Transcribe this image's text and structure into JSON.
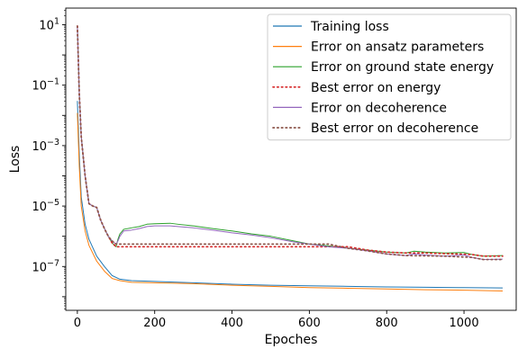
{
  "chart_data": {
    "type": "line",
    "xlabel": "Epoches",
    "ylabel": "Loss",
    "xlim": [
      -30,
      1135
    ],
    "ylim_log10": [
      -8.45,
      1.55
    ],
    "y_scale": "log",
    "grid": false,
    "legend_position": "top-right",
    "x_ticks": [
      0,
      200,
      400,
      600,
      800,
      1000
    ],
    "x_tick_labels": [
      "0",
      "200",
      "400",
      "600",
      "800",
      "1000"
    ],
    "y_ticks_log10": [
      1,
      -1,
      -3,
      -5,
      -7
    ],
    "y_tick_labels": [
      {
        "base": "10",
        "exp": "1"
      },
      {
        "base": "10",
        "exp": "−1"
      },
      {
        "base": "10",
        "exp": "−3"
      },
      {
        "base": "10",
        "exp": "−5"
      },
      {
        "base": "10",
        "exp": "−7"
      }
    ],
    "series": [
      {
        "name": "Training loss",
        "color": "#1f77b4",
        "style": "solid",
        "points": [
          [
            0,
            0.03
          ],
          [
            5,
            0.0005
          ],
          [
            10,
            2e-05
          ],
          [
            20,
            2.5e-06
          ],
          [
            30,
            8e-07
          ],
          [
            50,
            2.2e-07
          ],
          [
            70,
            1e-07
          ],
          [
            90,
            5e-08
          ],
          [
            110,
            3.8e-08
          ],
          [
            140,
            3.4e-08
          ],
          [
            200,
            3.2e-08
          ],
          [
            300,
            2.9e-08
          ],
          [
            400,
            2.6e-08
          ],
          [
            500,
            2.4e-08
          ],
          [
            600,
            2.3e-08
          ],
          [
            700,
            2.2e-08
          ],
          [
            800,
            2.1e-08
          ],
          [
            900,
            2.05e-08
          ],
          [
            1000,
            2e-08
          ],
          [
            1100,
            1.95e-08
          ]
        ]
      },
      {
        "name": "Error on ansatz parameters",
        "color": "#ff7f0e",
        "style": "solid",
        "points": [
          [
            0,
            0.012
          ],
          [
            5,
            0.0002
          ],
          [
            10,
            1e-05
          ],
          [
            20,
            1.5e-06
          ],
          [
            30,
            5e-07
          ],
          [
            50,
            1.5e-07
          ],
          [
            70,
            7e-08
          ],
          [
            90,
            4e-08
          ],
          [
            110,
            3.4e-08
          ],
          [
            140,
            3e-08
          ],
          [
            200,
            2.9e-08
          ],
          [
            300,
            2.7e-08
          ],
          [
            400,
            2.4e-08
          ],
          [
            500,
            2.2e-08
          ],
          [
            600,
            2e-08
          ],
          [
            700,
            1.9e-08
          ],
          [
            800,
            1.8e-08
          ],
          [
            900,
            1.7e-08
          ],
          [
            1000,
            1.65e-08
          ],
          [
            1100,
            1.55e-08
          ]
        ]
      },
      {
        "name": "Error on ground state energy",
        "color": "#2ca02c",
        "style": "solid",
        "points": [
          [
            0,
            9
          ],
          [
            5,
            0.05
          ],
          [
            10,
            0.002
          ],
          [
            20,
            0.0001
          ],
          [
            30,
            1.2e-05
          ],
          [
            40,
            1e-05
          ],
          [
            50,
            9e-06
          ],
          [
            60,
            3.5e-06
          ],
          [
            70,
            1.8e-06
          ],
          [
            80,
            1e-06
          ],
          [
            90,
            6e-07
          ],
          [
            100,
            4.5e-07
          ],
          [
            105,
            8e-07
          ],
          [
            110,
            1.2e-06
          ],
          [
            120,
            1.7e-06
          ],
          [
            140,
            1.9e-06
          ],
          [
            160,
            2.1e-06
          ],
          [
            180,
            2.5e-06
          ],
          [
            200,
            2.6e-06
          ],
          [
            240,
            2.7e-06
          ],
          [
            260,
            2.5e-06
          ],
          [
            300,
            2.2e-06
          ],
          [
            350,
            1.8e-06
          ],
          [
            400,
            1.5e-06
          ],
          [
            450,
            1.2e-06
          ],
          [
            500,
            1e-06
          ],
          [
            560,
            7e-07
          ],
          [
            600,
            5.5e-07
          ],
          [
            650,
            4.8e-07
          ],
          [
            700,
            4e-07
          ],
          [
            750,
            3.5e-07
          ],
          [
            800,
            3e-07
          ],
          [
            850,
            2.8e-07
          ],
          [
            870,
            3.2e-07
          ],
          [
            900,
            3e-07
          ],
          [
            950,
            2.8e-07
          ],
          [
            1000,
            2.9e-07
          ],
          [
            1020,
            2.5e-07
          ],
          [
            1050,
            2.2e-07
          ],
          [
            1100,
            2.3e-07
          ]
        ]
      },
      {
        "name": "Best error on energy",
        "color": "#d62728",
        "style": "dotted",
        "points": [
          [
            0,
            9
          ],
          [
            5,
            0.05
          ],
          [
            10,
            0.002
          ],
          [
            20,
            0.0001
          ],
          [
            30,
            1.2e-05
          ],
          [
            40,
            1e-05
          ],
          [
            50,
            9e-06
          ],
          [
            60,
            3.5e-06
          ],
          [
            70,
            1.8e-06
          ],
          [
            80,
            1e-06
          ],
          [
            90,
            6e-07
          ],
          [
            100,
            4.5e-07
          ],
          [
            700,
            4.5e-07
          ],
          [
            750,
            3.5e-07
          ],
          [
            800,
            3e-07
          ],
          [
            850,
            2.8e-07
          ],
          [
            900,
            2.8e-07
          ],
          [
            1020,
            2.5e-07
          ],
          [
            1050,
            2.2e-07
          ],
          [
            1100,
            2.2e-07
          ]
        ]
      },
      {
        "name": "Error on decoherence",
        "color": "#9467bd",
        "style": "solid",
        "points": [
          [
            0,
            9
          ],
          [
            5,
            0.05
          ],
          [
            10,
            0.002
          ],
          [
            20,
            0.0001
          ],
          [
            30,
            1.2e-05
          ],
          [
            40,
            1e-05
          ],
          [
            50,
            9e-06
          ],
          [
            60,
            3.5e-06
          ],
          [
            70,
            1.8e-06
          ],
          [
            80,
            1e-06
          ],
          [
            90,
            7e-07
          ],
          [
            100,
            5.5e-07
          ],
          [
            105,
            7e-07
          ],
          [
            110,
            1e-06
          ],
          [
            120,
            1.5e-06
          ],
          [
            140,
            1.6e-06
          ],
          [
            160,
            1.8e-06
          ],
          [
            180,
            2.1e-06
          ],
          [
            200,
            2.2e-06
          ],
          [
            240,
            2.2e-06
          ],
          [
            260,
            2.1e-06
          ],
          [
            300,
            1.9e-06
          ],
          [
            350,
            1.6e-06
          ],
          [
            400,
            1.3e-06
          ],
          [
            450,
            1.1e-06
          ],
          [
            500,
            9e-07
          ],
          [
            560,
            6.5e-07
          ],
          [
            600,
            5.5e-07
          ],
          [
            650,
            4.5e-07
          ],
          [
            700,
            4e-07
          ],
          [
            750,
            3.3e-07
          ],
          [
            800,
            2.6e-07
          ],
          [
            850,
            2.3e-07
          ],
          [
            870,
            2.6e-07
          ],
          [
            900,
            2.4e-07
          ],
          [
            950,
            2.2e-07
          ],
          [
            1000,
            2.4e-07
          ],
          [
            1020,
            2e-07
          ],
          [
            1050,
            1.7e-07
          ],
          [
            1100,
            1.75e-07
          ]
        ]
      },
      {
        "name": "Best error on decoherence",
        "color": "#8c564b",
        "style": "dotted",
        "points": [
          [
            0,
            9
          ],
          [
            5,
            0.05
          ],
          [
            10,
            0.002
          ],
          [
            20,
            0.0001
          ],
          [
            30,
            1.2e-05
          ],
          [
            40,
            1e-05
          ],
          [
            50,
            9e-06
          ],
          [
            60,
            3.5e-06
          ],
          [
            70,
            1.8e-06
          ],
          [
            80,
            1e-06
          ],
          [
            90,
            7e-07
          ],
          [
            100,
            5.5e-07
          ],
          [
            650,
            5.5e-07
          ],
          [
            700,
            4e-07
          ],
          [
            750,
            3.3e-07
          ],
          [
            800,
            2.6e-07
          ],
          [
            850,
            2.3e-07
          ],
          [
            950,
            2.2e-07
          ],
          [
            1020,
            2e-07
          ],
          [
            1050,
            1.7e-07
          ],
          [
            1100,
            1.7e-07
          ]
        ]
      }
    ]
  }
}
